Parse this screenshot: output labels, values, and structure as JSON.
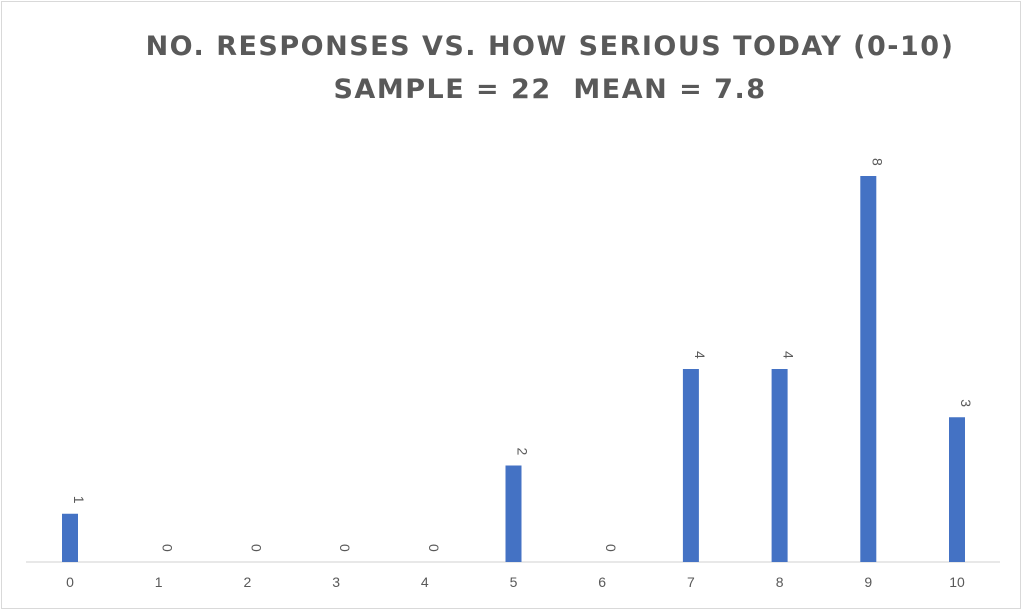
{
  "chart_data": {
    "type": "bar",
    "title_lines": [
      "NO. RESPONSES VS. HOW SERIOUS TODAY (0-10)",
      "SAMPLE = 22  MEAN = 7.8"
    ],
    "categories": [
      "0",
      "1",
      "2",
      "3",
      "4",
      "5",
      "6",
      "7",
      "8",
      "9",
      "10"
    ],
    "values": [
      1,
      0,
      0,
      0,
      0,
      2,
      0,
      4,
      4,
      8,
      3
    ],
    "data_labels": [
      "1",
      "0",
      "0",
      "0",
      "0",
      "2",
      "0",
      "4",
      "4",
      "8",
      "3"
    ],
    "xlabel": "",
    "ylabel": "",
    "ylim": [
      0,
      8
    ],
    "grid": false,
    "legend": "none",
    "bar_color": "#4472c4",
    "axis_color": "#d9d9d9",
    "text_color": "#595959"
  }
}
